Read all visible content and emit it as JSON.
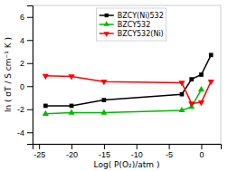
{
  "chart_data": {
    "type": "line",
    "xlabel": "Log( P(O₂)/atm )",
    "ylabel": "ln ( σT / S cm⁻¹ K )",
    "xlim": [
      -26,
      3
    ],
    "ylim": [
      -5,
      7
    ],
    "xticks": [
      -25,
      -20,
      -15,
      -10,
      -5,
      0
    ],
    "yticks": [
      -4,
      -2,
      0,
      2,
      4,
      6
    ],
    "legend": "upper left",
    "series": [
      {
        "name": "BZCY(Ni)532",
        "color": "#000000",
        "marker": "square",
        "x": [
          -24,
          -20,
          -15,
          -3,
          -1.5,
          0,
          1.5
        ],
        "values": [
          -1.7,
          -1.7,
          -1.2,
          -0.7,
          0.6,
          1.0,
          2.7
        ]
      },
      {
        "name": "BZCY532",
        "color": "#00bb00",
        "marker": "triangle-up",
        "x": [
          -24,
          -20,
          -15,
          -3,
          -1.5,
          0
        ],
        "values": [
          -2.4,
          -2.3,
          -2.3,
          -2.1,
          -1.8,
          -0.3
        ]
      },
      {
        "name": "BZCY532(Ni)",
        "color": "#ff0000",
        "marker": "triangle-down",
        "x": [
          -24,
          -20,
          -15,
          -3,
          -1.5,
          0,
          1.5
        ],
        "values": [
          0.9,
          0.85,
          0.4,
          0.3,
          -1.5,
          -1.4,
          0.4
        ]
      }
    ]
  }
}
